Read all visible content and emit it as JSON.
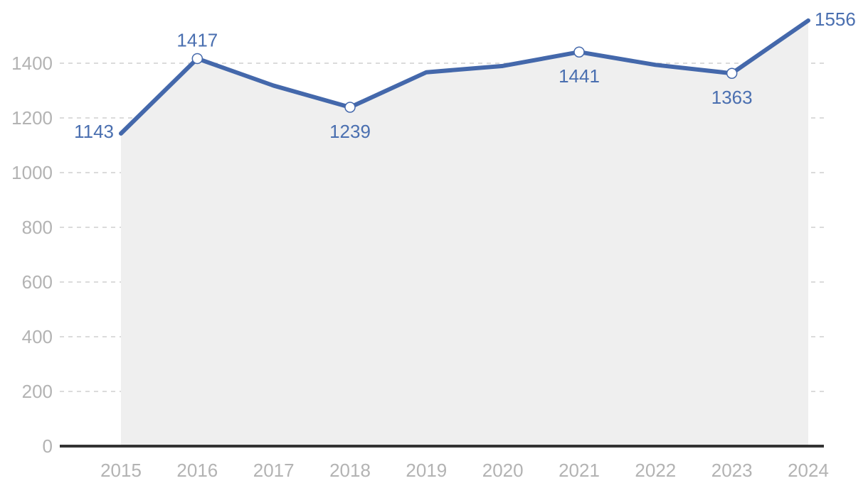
{
  "chart_data": {
    "type": "area",
    "title": "",
    "xlabel": "",
    "ylabel": "",
    "categories": [
      "2015",
      "2016",
      "2017",
      "2018",
      "2019",
      "2020",
      "2021",
      "2022",
      "2023",
      "2024"
    ],
    "series": [
      {
        "values": [
          1143,
          1417,
          1318,
          1239,
          1367,
          1390,
          1441,
          1394,
          1363,
          1556
        ]
      }
    ],
    "ylim": [
      0,
      1600
    ],
    "yticks": [
      0,
      200,
      400,
      600,
      800,
      1000,
      1200,
      1400
    ],
    "grid": true,
    "legend": "none",
    "labeled_points": [
      {
        "index": 0,
        "text": "1143",
        "marker": false,
        "placement": "left"
      },
      {
        "index": 1,
        "text": "1417",
        "marker": true,
        "placement": "above"
      },
      {
        "index": 3,
        "text": "1239",
        "marker": true,
        "placement": "below"
      },
      {
        "index": 6,
        "text": "1441",
        "marker": true,
        "placement": "below"
      },
      {
        "index": 8,
        "text": "1363",
        "marker": true,
        "placement": "below"
      },
      {
        "index": 9,
        "text": "1556",
        "marker": false,
        "placement": "right"
      }
    ],
    "colors": {
      "line": "#4468ab",
      "area": "#efefef",
      "label": "#4a6fb0",
      "marker": "#ffffff"
    }
  }
}
